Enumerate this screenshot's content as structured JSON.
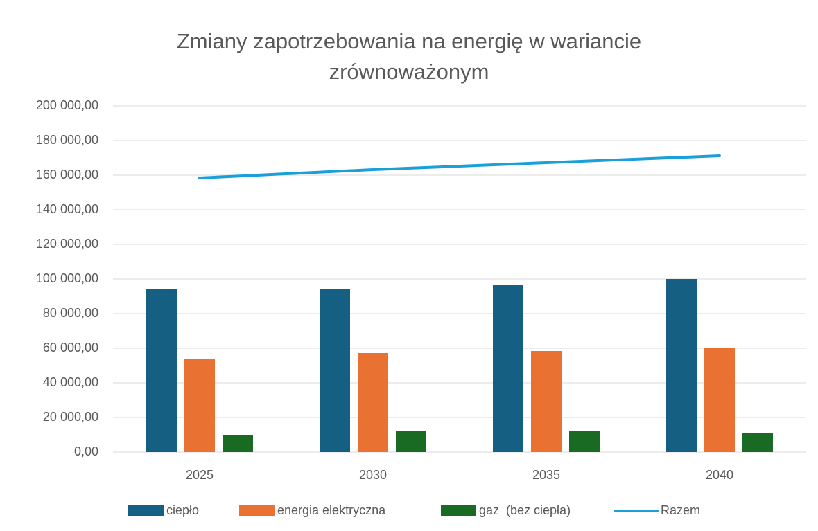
{
  "chart_data": {
    "type": "bar",
    "title": "Zmiany zapotrzebowania na energię w wariancie zrównoważonym",
    "categories": [
      "2025",
      "2030",
      "2035",
      "2040"
    ],
    "series": [
      {
        "name": "ciepło",
        "type": "bar",
        "color": "#156082",
        "values": [
          94400,
          94000,
          96800,
          100000
        ]
      },
      {
        "name": "energia elektryczna",
        "type": "bar",
        "color": "#e97132",
        "values": [
          54000,
          57200,
          58400,
          60400
        ]
      },
      {
        "name": "gaz  (bez ciepła)",
        "type": "bar",
        "color": "#196b24",
        "values": [
          10000,
          12000,
          12000,
          10800
        ]
      },
      {
        "name": "Razem",
        "type": "line",
        "color": "#1a9fd9",
        "values": [
          158400,
          163200,
          167200,
          171200
        ]
      }
    ],
    "ylim": [
      0,
      200000
    ],
    "yticks": [
      {
        "value": 0,
        "label": "0,00"
      },
      {
        "value": 20000,
        "label": "20 000,00"
      },
      {
        "value": 40000,
        "label": "40 000,00"
      },
      {
        "value": 60000,
        "label": "60 000,00"
      },
      {
        "value": 80000,
        "label": "80 000,00"
      },
      {
        "value": 100000,
        "label": "100 000,00"
      },
      {
        "value": 120000,
        "label": "120 000,00"
      },
      {
        "value": 140000,
        "label": "140 000,00"
      },
      {
        "value": 160000,
        "label": "160 000,00"
      },
      {
        "value": 180000,
        "label": "180 000,00"
      },
      {
        "value": 200000,
        "label": "200 000,00"
      }
    ],
    "grid": true,
    "legend": "bottom"
  }
}
